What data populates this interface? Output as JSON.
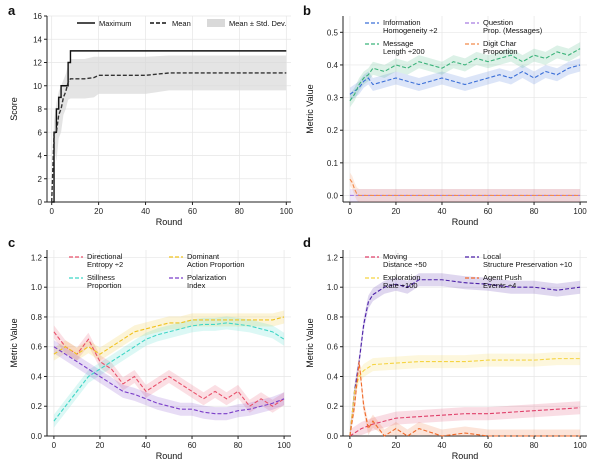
{
  "colors": {
    "black": "#111111",
    "grey_band": "#d9d9d9",
    "blue": "#3b6fd8",
    "green": "#3bb37a",
    "purple": "#a77ce0",
    "orange": "#f28a4b",
    "red": "#e8506a",
    "teal": "#3fd6c6",
    "yellow": "#f0c21f",
    "violet": "#7b3fc9",
    "yellow_light": "#f5d442",
    "orange_dark": "#f06a2a",
    "magenta_red": "#e0406a",
    "indigo": "#4b1fa8"
  },
  "chart_data": [
    {
      "panel": "a",
      "type": "line",
      "xlabel": "Round",
      "ylabel": "Score",
      "xlim": [
        -2,
        102
      ],
      "ylim": [
        0,
        16
      ],
      "xticks": [
        0,
        20,
        40,
        60,
        80,
        100
      ],
      "yticks": [
        0,
        2,
        4,
        6,
        8,
        10,
        12,
        14,
        16
      ],
      "legend": [
        "Maximum",
        "Mean",
        "Mean ± Std. Dev."
      ],
      "legend_position": "top",
      "series": [
        {
          "name": "Maximum",
          "style": "solid",
          "color": "#111111",
          "x": [
            0,
            1,
            2,
            3,
            4,
            5,
            6,
            7,
            8,
            100
          ],
          "y": [
            0,
            6,
            8,
            9,
            10,
            10,
            10,
            12,
            13,
            13
          ]
        },
        {
          "name": "Mean",
          "style": "dashed",
          "color": "#333333",
          "x": [
            0,
            1,
            2,
            3,
            4,
            5,
            6,
            7,
            8,
            10,
            14,
            18,
            20,
            40,
            50,
            60,
            80,
            100
          ],
          "y": [
            0,
            5.9,
            6,
            7.5,
            8,
            9,
            9.5,
            10.3,
            10.6,
            10.6,
            10.6,
            10.7,
            10.9,
            10.9,
            11.1,
            11.1,
            11.1,
            11.1
          ],
          "band_upper": [
            0,
            7,
            8.5,
            9.5,
            10,
            10.5,
            11,
            11.8,
            12.3,
            12.3,
            12.3,
            12.5,
            12.5,
            12.5,
            12.6,
            12.6,
            12.6,
            12.6
          ],
          "band_lower": [
            0,
            4.8,
            3.5,
            5.5,
            6,
            7.5,
            8,
            8.8,
            8.9,
            8.9,
            8.9,
            9,
            9.3,
            9.3,
            9.6,
            9.6,
            9.6,
            9.6
          ]
        }
      ]
    },
    {
      "panel": "b",
      "type": "line",
      "xlabel": "Round",
      "ylabel": "Metric Value",
      "xlim": [
        -3,
        103
      ],
      "ylim": [
        -0.02,
        0.55
      ],
      "xticks": [
        0,
        20,
        40,
        60,
        80,
        100
      ],
      "yticks": [
        0.0,
        0.1,
        0.2,
        0.3,
        0.4,
        0.5
      ],
      "legend": [
        "Information Homogeneity ÷2",
        "Question Prop. (Messages)",
        "Message Length ÷200",
        "Digit Char Proportion"
      ],
      "legend_position": "top",
      "series": [
        {
          "name": "Information Homogeneity ÷2",
          "color": "#3b6fd8",
          "x": [
            0,
            2,
            4,
            6,
            8,
            10,
            15,
            20,
            25,
            30,
            35,
            40,
            45,
            50,
            55,
            60,
            65,
            70,
            75,
            80,
            85,
            90,
            95,
            100
          ],
          "y": [
            0.31,
            0.32,
            0.33,
            0.35,
            0.36,
            0.34,
            0.35,
            0.36,
            0.35,
            0.34,
            0.35,
            0.36,
            0.35,
            0.34,
            0.35,
            0.36,
            0.37,
            0.36,
            0.38,
            0.36,
            0.38,
            0.37,
            0.39,
            0.4
          ]
        },
        {
          "name": "Question Prop. (Messages)",
          "color": "#a77ce0",
          "x": [
            0,
            100
          ],
          "y": [
            0.0,
            0.0
          ]
        },
        {
          "name": "Message Length ÷200",
          "color": "#3bb37a",
          "x": [
            0,
            2,
            4,
            6,
            8,
            10,
            15,
            20,
            25,
            30,
            35,
            40,
            45,
            50,
            55,
            60,
            65,
            70,
            75,
            80,
            85,
            90,
            95,
            100
          ],
          "y": [
            0.29,
            0.31,
            0.34,
            0.36,
            0.37,
            0.39,
            0.38,
            0.4,
            0.39,
            0.41,
            0.4,
            0.39,
            0.41,
            0.4,
            0.42,
            0.41,
            0.42,
            0.43,
            0.41,
            0.43,
            0.42,
            0.44,
            0.43,
            0.45
          ]
        },
        {
          "name": "Digit Char Proportion",
          "color": "#f28a4b",
          "x": [
            0,
            1,
            2,
            3,
            4,
            5,
            100
          ],
          "y": [
            0.05,
            0.04,
            0.02,
            0.005,
            0.0,
            0.0,
            0.0
          ]
        }
      ]
    },
    {
      "panel": "c",
      "type": "line",
      "xlabel": "Round",
      "ylabel": "Metric Value",
      "xlim": [
        -3,
        103
      ],
      "ylim": [
        0,
        1.25
      ],
      "xticks": [
        0,
        20,
        40,
        60,
        80,
        100
      ],
      "yticks": [
        0.0,
        0.2,
        0.4,
        0.6,
        0.8,
        1.0,
        1.2
      ],
      "legend": [
        "Directional Entropy ÷2",
        "Dominant Action Proportion",
        "Stillness Proportion",
        "Polarization Index"
      ],
      "legend_position": "top",
      "series": [
        {
          "name": "Directional Entropy ÷2",
          "color": "#e8506a",
          "x": [
            0,
            5,
            10,
            15,
            20,
            25,
            30,
            35,
            40,
            45,
            50,
            55,
            60,
            65,
            70,
            75,
            80,
            85,
            90,
            95,
            100
          ],
          "y": [
            0.7,
            0.6,
            0.55,
            0.65,
            0.5,
            0.45,
            0.35,
            0.4,
            0.3,
            0.35,
            0.4,
            0.35,
            0.3,
            0.25,
            0.3,
            0.25,
            0.3,
            0.2,
            0.25,
            0.2,
            0.25
          ]
        },
        {
          "name": "Dominant Action Proportion",
          "color": "#f0c21f",
          "x": [
            0,
            5,
            10,
            15,
            20,
            25,
            30,
            35,
            40,
            45,
            50,
            55,
            60,
            65,
            70,
            75,
            80,
            85,
            90,
            95,
            100
          ],
          "y": [
            0.55,
            0.6,
            0.55,
            0.6,
            0.55,
            0.6,
            0.65,
            0.7,
            0.72,
            0.74,
            0.76,
            0.76,
            0.78,
            0.78,
            0.78,
            0.78,
            0.78,
            0.78,
            0.78,
            0.78,
            0.8
          ]
        },
        {
          "name": "Stillness Proportion",
          "color": "#3fd6c6",
          "x": [
            0,
            5,
            10,
            15,
            20,
            25,
            30,
            35,
            40,
            45,
            50,
            55,
            60,
            65,
            70,
            75,
            80,
            85,
            90,
            95,
            100
          ],
          "y": [
            0.1,
            0.2,
            0.3,
            0.4,
            0.45,
            0.5,
            0.55,
            0.6,
            0.65,
            0.68,
            0.7,
            0.72,
            0.74,
            0.75,
            0.75,
            0.76,
            0.75,
            0.74,
            0.72,
            0.7,
            0.65
          ]
        },
        {
          "name": "Polarization Index",
          "color": "#7b3fc9",
          "x": [
            0,
            5,
            10,
            15,
            20,
            25,
            30,
            35,
            40,
            45,
            50,
            55,
            60,
            65,
            70,
            75,
            80,
            85,
            90,
            95,
            100
          ],
          "y": [
            0.6,
            0.55,
            0.5,
            0.45,
            0.4,
            0.35,
            0.3,
            0.28,
            0.25,
            0.22,
            0.2,
            0.18,
            0.18,
            0.16,
            0.15,
            0.15,
            0.17,
            0.18,
            0.2,
            0.22,
            0.25
          ]
        }
      ]
    },
    {
      "panel": "d",
      "type": "line",
      "xlabel": "Round",
      "ylabel": "Metric Value",
      "xlim": [
        -3,
        103
      ],
      "ylim": [
        0,
        1.25
      ],
      "xticks": [
        0,
        20,
        40,
        60,
        80,
        100
      ],
      "yticks": [
        0.0,
        0.2,
        0.4,
        0.6,
        0.8,
        1.0,
        1.2
      ],
      "legend": [
        "Moving Distance ÷50",
        "Local Structure Preservation ÷10",
        "Exploration Rate ÷100",
        "Agent Push Events ÷4"
      ],
      "legend_position": "top",
      "series": [
        {
          "name": "Moving Distance ÷50",
          "color": "#e0406a",
          "x": [
            0,
            5,
            10,
            15,
            20,
            30,
            40,
            50,
            60,
            70,
            80,
            90,
            100
          ],
          "y": [
            0.0,
            0.05,
            0.08,
            0.1,
            0.12,
            0.13,
            0.14,
            0.15,
            0.15,
            0.16,
            0.17,
            0.18,
            0.19
          ]
        },
        {
          "name": "Local Structure Preservation ÷10",
          "color": "#4b1fa8",
          "x": [
            0,
            2,
            4,
            6,
            8,
            10,
            15,
            20,
            25,
            30,
            40,
            50,
            60,
            70,
            80,
            90,
            100
          ],
          "y": [
            0.0,
            0.3,
            0.5,
            0.75,
            0.9,
            0.95,
            1.0,
            1.02,
            1.0,
            1.05,
            1.05,
            1.03,
            1.02,
            1.0,
            1.0,
            0.98,
            1.0
          ]
        },
        {
          "name": "Exploration Rate ÷100",
          "color": "#f5d442",
          "x": [
            0,
            2,
            4,
            6,
            8,
            10,
            20,
            30,
            40,
            50,
            60,
            70,
            80,
            90,
            100
          ],
          "y": [
            0.0,
            0.3,
            0.4,
            0.44,
            0.46,
            0.48,
            0.49,
            0.5,
            0.5,
            0.5,
            0.51,
            0.51,
            0.51,
            0.52,
            0.52
          ]
        },
        {
          "name": "Agent Push Events ÷4",
          "color": "#f06a2a",
          "x": [
            0,
            2,
            4,
            6,
            8,
            10,
            15,
            20,
            25,
            30,
            40,
            50,
            60,
            70,
            80,
            90,
            100
          ],
          "y": [
            0.0,
            0.2,
            0.5,
            0.2,
            0.05,
            0.1,
            0.0,
            0.05,
            0.0,
            0.05,
            0.0,
            0.02,
            0.0,
            0.0,
            0.0,
            0.0,
            0.0
          ]
        }
      ]
    }
  ]
}
